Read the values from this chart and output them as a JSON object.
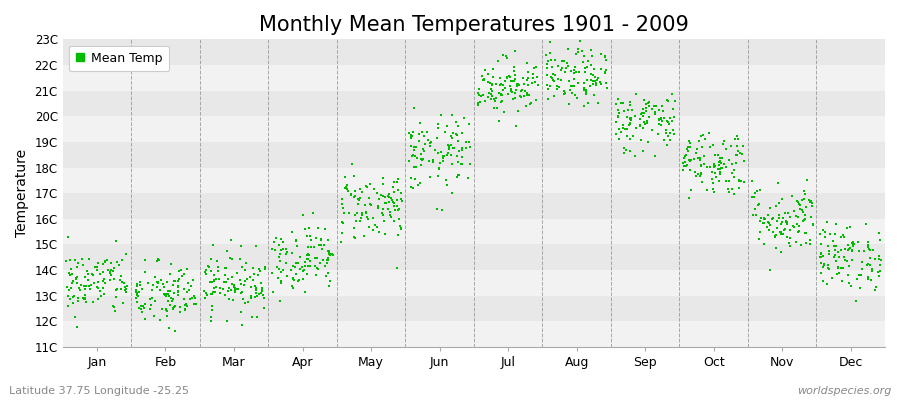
{
  "title": "Monthly Mean Temperatures 1901 - 2009",
  "ylabel": "Temperature",
  "subtitle": "Latitude 37.75 Longitude -25.25",
  "watermark": "worldspecies.org",
  "ylim": [
    11,
    23
  ],
  "yticks": [
    11,
    12,
    13,
    14,
    15,
    16,
    17,
    18,
    19,
    20,
    21,
    22,
    23
  ],
  "ytick_labels": [
    "11C",
    "12C",
    "13C",
    "14C",
    "15C",
    "16C",
    "17C",
    "18C",
    "19C",
    "20C",
    "21C",
    "22C",
    "23C"
  ],
  "months": [
    "Jan",
    "Feb",
    "Mar",
    "Apr",
    "May",
    "Jun",
    "Jul",
    "Aug",
    "Sep",
    "Oct",
    "Nov",
    "Dec"
  ],
  "monthly_mean": [
    13.5,
    13.0,
    13.5,
    14.5,
    16.5,
    18.5,
    21.2,
    21.5,
    19.8,
    18.2,
    16.0,
    14.5
  ],
  "monthly_std": [
    0.65,
    0.65,
    0.6,
    0.65,
    0.7,
    0.75,
    0.55,
    0.55,
    0.6,
    0.65,
    0.7,
    0.65
  ],
  "n_years": 109,
  "seed": 42,
  "dot_color": "#00BB00",
  "dot_size": 3,
  "bg_color": "#f2f2f2",
  "stripe_light": "#f2f2f2",
  "stripe_dark": "#e8e8e8",
  "grid_color": "#888888",
  "title_fontsize": 15,
  "legend_label": "Mean Temp",
  "legend_marker_color": "#00BB00",
  "subtitle_color": "#888888",
  "watermark_color": "#888888"
}
